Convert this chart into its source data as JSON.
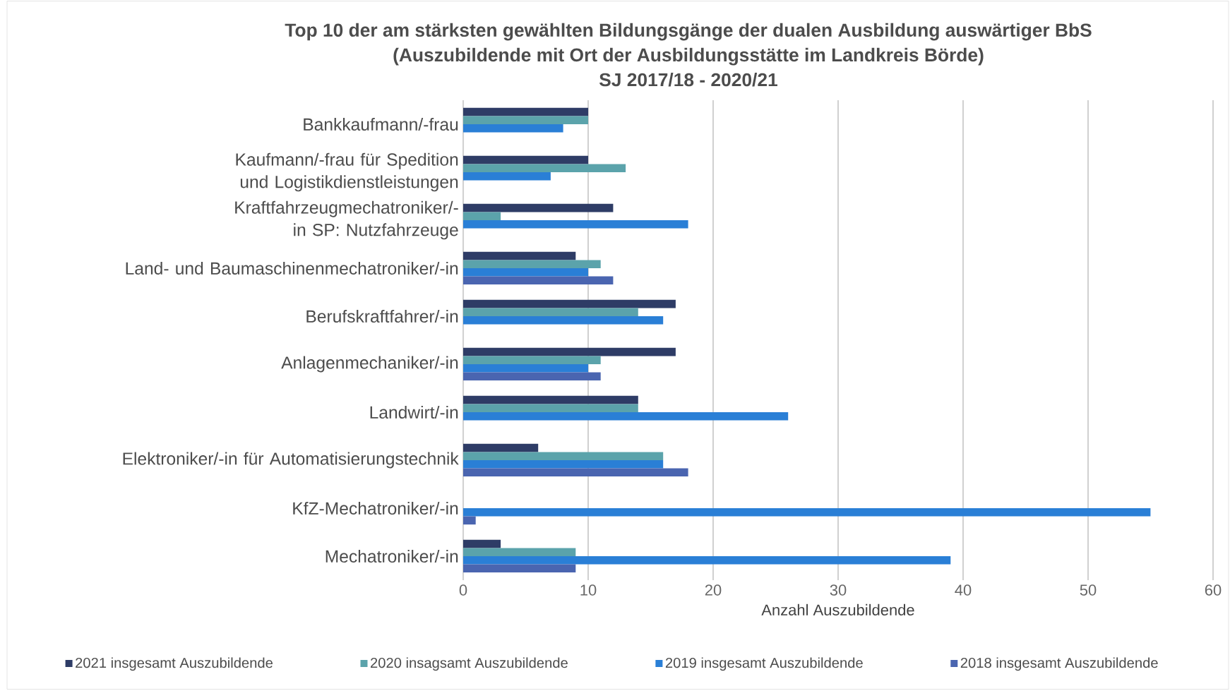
{
  "chart_data": {
    "type": "bar",
    "orientation": "horizontal",
    "title": "Top 10 der am stärksten gewählten Bildungsgänge der dualen Ausbildung auswärtiger BbS",
    "subtitle": "(Auszubildende mit Ort der Ausbildungsstätte im Landkreis Börde)",
    "annotations": [
      "SJ 2017/18 - 2020/21"
    ],
    "xlabel": "Anzahl Auszubildende",
    "categories": [
      "Bankkaufmann/-frau",
      "Kaufmann/-frau für Spedition und Logistikdienstleistungen",
      "Kraftfahrzeugmechatroniker/-in SP: Nutzfahrzeuge",
      "Land- und Baumaschinenmechatroniker/-in",
      "Berufskraftfahrer/-in",
      "Anlagenmechaniker/-in",
      "Landwirt/-in",
      "Elektroniker/-in für Automatisierungstechnik",
      "KfZ-Mechatroniker/-in",
      "Mechatroniker/-in"
    ],
    "series": [
      {
        "name": "2021 insgesamt Auszubildende",
        "color": "#2e3c66",
        "values": [
          10,
          10,
          12,
          9,
          17,
          17,
          14,
          6,
          null,
          3
        ]
      },
      {
        "name": "2020 insagsamt Auszubildende",
        "color": "#5ba3ab",
        "values": [
          10,
          13,
          3,
          11,
          14,
          11,
          14,
          16,
          null,
          9
        ]
      },
      {
        "name": "2019 insgesamt Auszubildende",
        "color": "#2a7fd6",
        "values": [
          8,
          7,
          18,
          10,
          16,
          10,
          26,
          16,
          55,
          39
        ]
      },
      {
        "name": "2018 insgesamt Auszubildende",
        "color": "#4a65b0",
        "values": [
          null,
          null,
          null,
          12,
          null,
          11,
          null,
          18,
          1,
          9
        ]
      }
    ],
    "xlim": [
      0,
      60
    ],
    "xticks": [
      0,
      10,
      20,
      30,
      40,
      50,
      60
    ],
    "grid": "x",
    "legend": "bottom"
  }
}
